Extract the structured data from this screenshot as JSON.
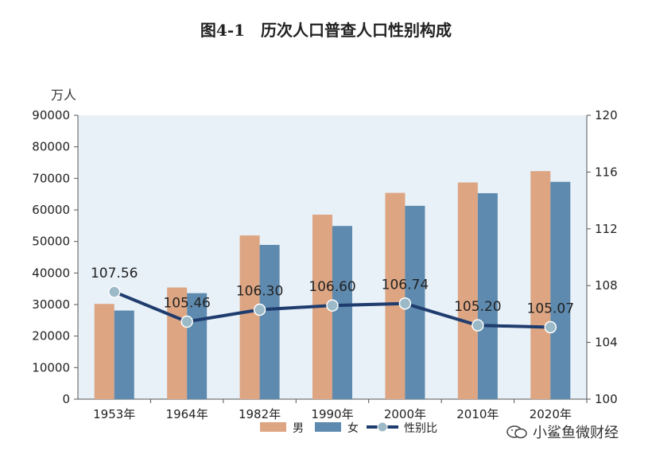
{
  "title": "图4-1　历次人口普查人口性别构成",
  "unit_label": "万人",
  "watermark": "小鲨鱼微财经",
  "colors": {
    "male": "#DDA582",
    "female": "#5D8AAE",
    "ratio_line": "#1F3C6E",
    "ratio_marker": "#9BB9C6",
    "plot_bg": "#E8F0F8"
  },
  "chart_data": {
    "type": "bar",
    "title": "图4-1　历次人口普查人口性别构成",
    "categories": [
      "1953年",
      "1964年",
      "1982年",
      "1990年",
      "2000年",
      "2010年",
      "2020年"
    ],
    "series": [
      {
        "name": "男",
        "type": "bar",
        "axis": "left",
        "values": [
          30200,
          35400,
          51900,
          58500,
          65400,
          68700,
          72300
        ]
      },
      {
        "name": "女",
        "type": "bar",
        "axis": "left",
        "values": [
          28100,
          33600,
          48900,
          54900,
          61300,
          65300,
          68900
        ]
      },
      {
        "name": "性别比",
        "type": "line",
        "axis": "right",
        "values": [
          107.56,
          105.46,
          106.3,
          106.6,
          106.74,
          105.2,
          105.07
        ]
      }
    ],
    "ylabel": "万人",
    "ylim": [
      0,
      90000
    ],
    "yticks": [
      "0",
      "10000",
      "20000",
      "30000",
      "40000",
      "50000",
      "60000",
      "70000",
      "80000",
      "90000"
    ],
    "y2lim": [
      100,
      120
    ],
    "y2ticks": [
      "100",
      "104",
      "108",
      "112",
      "116",
      "120"
    ],
    "data_labels": [
      "107.56",
      "105.46",
      "106.30",
      "106.60",
      "106.74",
      "105.20",
      "105.07"
    ],
    "legend": [
      "男",
      "女",
      "性别比"
    ],
    "legend_position": "bottom",
    "grid": false
  }
}
